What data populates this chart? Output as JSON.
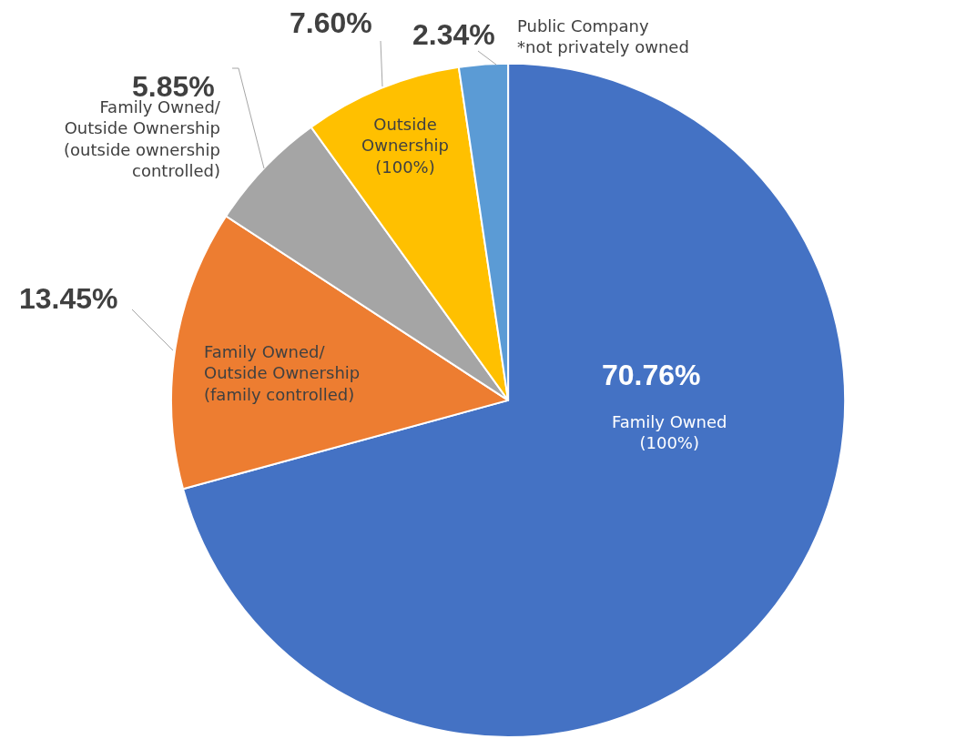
{
  "chart_data": {
    "type": "pie",
    "categories": [
      "Family Owned\n(100%)",
      "Family Owned/\nOutside Ownership\n(family controlled)",
      "Family Owned/\nOutside Ownership\n(outside ownership\ncontrolled)",
      "Outside\nOwnership\n(100%)",
      "Public Company\n*not privately owned"
    ],
    "values": [
      70.76,
      13.45,
      5.85,
      7.6,
      2.34
    ],
    "value_labels": [
      "70.76%",
      "13.45%",
      "5.85%",
      "7.60%",
      "2.34%"
    ],
    "colors": [
      "#4472c4",
      "#ed7d31",
      "#a5a5a5",
      "#ffc000",
      "#5b9bd5"
    ],
    "legend": false
  }
}
